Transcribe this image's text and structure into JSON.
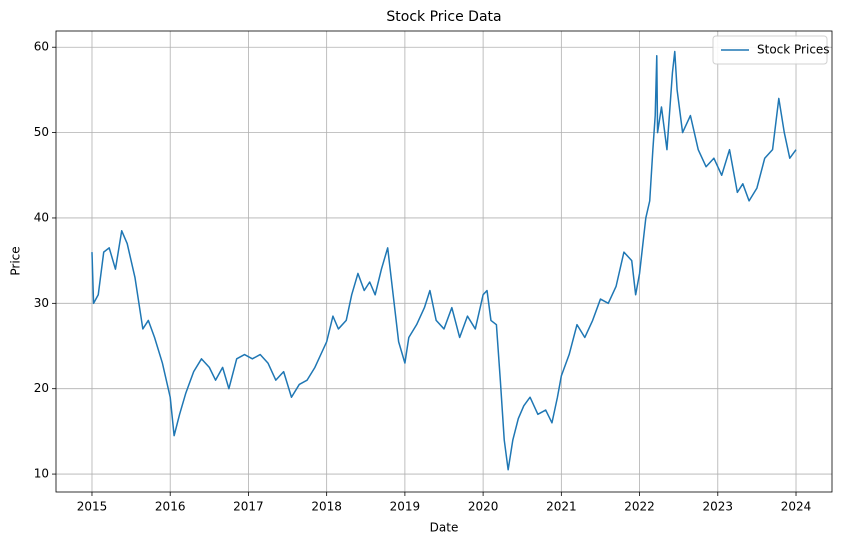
{
  "chart_data": {
    "type": "line",
    "title": "Stock Price Data",
    "x_label": "Date",
    "y_label": "Price",
    "x": [
      2015.0,
      2015.02,
      2015.08,
      2015.15,
      2015.22,
      2015.3,
      2015.38,
      2015.45,
      2015.55,
      2015.65,
      2015.72,
      2015.8,
      2015.9,
      2016.0,
      2016.05,
      2016.12,
      2016.2,
      2016.3,
      2016.4,
      2016.5,
      2016.58,
      2016.67,
      2016.75,
      2016.85,
      2016.95,
      2017.05,
      2017.15,
      2017.25,
      2017.35,
      2017.45,
      2017.55,
      2017.65,
      2017.75,
      2017.85,
      2018.0,
      2018.08,
      2018.15,
      2018.25,
      2018.32,
      2018.4,
      2018.48,
      2018.55,
      2018.62,
      2018.7,
      2018.78,
      2018.85,
      2018.92,
      2019.0,
      2019.05,
      2019.15,
      2019.25,
      2019.32,
      2019.4,
      2019.5,
      2019.6,
      2019.7,
      2019.8,
      2019.9,
      2020.0,
      2020.05,
      2020.1,
      2020.17,
      2020.22,
      2020.27,
      2020.32,
      2020.38,
      2020.45,
      2020.52,
      2020.6,
      2020.7,
      2020.8,
      2020.88,
      2020.95,
      2021.0,
      2021.1,
      2021.2,
      2021.3,
      2021.4,
      2021.5,
      2021.6,
      2021.7,
      2021.8,
      2021.9,
      2021.95,
      2022.0,
      2022.08,
      2022.13,
      2022.17,
      2022.2,
      2022.22,
      2022.23,
      2022.28,
      2022.35,
      2022.42,
      2022.45,
      2022.48,
      2022.55,
      2022.65,
      2022.75,
      2022.85,
      2022.95,
      2023.05,
      2023.15,
      2023.25,
      2023.32,
      2023.4,
      2023.5,
      2023.6,
      2023.7,
      2023.78,
      2023.85,
      2023.92,
      2024.0
    ],
    "series": [
      {
        "name": "Stock Prices",
        "color": "#1f77b4",
        "values": [
          36,
          30,
          31,
          36,
          36.5,
          34,
          38.5,
          37,
          33,
          27,
          28,
          26,
          23,
          19,
          14.5,
          17,
          19.5,
          22,
          23.5,
          22.5,
          21,
          22.5,
          20,
          23.5,
          24,
          23.5,
          24,
          23,
          21,
          22,
          19,
          20.5,
          21,
          22.5,
          25.5,
          28.5,
          27,
          28,
          31,
          33.5,
          31.5,
          32.5,
          31,
          34,
          36.5,
          31,
          25.5,
          23,
          26,
          27.5,
          29.5,
          31.5,
          28,
          27,
          29.5,
          26,
          28.5,
          27,
          31,
          31.5,
          28,
          27.5,
          21,
          14,
          10.5,
          14,
          16.5,
          18,
          19,
          17,
          17.5,
          16,
          19,
          21.5,
          24,
          27.5,
          26,
          28,
          30.5,
          30,
          32,
          36,
          35,
          31,
          33.5,
          40,
          42,
          48,
          52,
          59,
          50,
          53,
          48,
          57,
          59.5,
          55,
          50,
          52,
          48,
          46,
          47,
          45,
          48,
          43,
          44,
          42,
          43.5,
          47,
          48,
          54,
          50,
          47,
          48
        ]
      }
    ],
    "xlim": [
      2014.54,
      2024.46
    ],
    "xticks": [
      2015,
      2016,
      2017,
      2018,
      2019,
      2020,
      2021,
      2022,
      2023,
      2024
    ],
    "ylim": [
      7.9,
      61.9
    ],
    "yticks": [
      10,
      20,
      30,
      40,
      50,
      60
    ],
    "grid": true,
    "legend": "upper right"
  }
}
